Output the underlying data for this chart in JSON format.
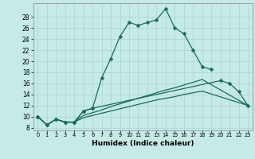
{
  "xlabel": "Humidex (Indice chaleur)",
  "xlim": [
    -0.5,
    23.5
  ],
  "ylim": [
    7.5,
    30.5
  ],
  "xticks": [
    0,
    1,
    2,
    3,
    4,
    5,
    6,
    7,
    8,
    9,
    10,
    11,
    12,
    13,
    14,
    15,
    16,
    17,
    18,
    19,
    20,
    21,
    22,
    23
  ],
  "yticks": [
    8,
    10,
    12,
    14,
    16,
    18,
    20,
    22,
    24,
    26,
    28
  ],
  "bg_color": "#c6eae6",
  "grid_color": "#aad4d0",
  "line_color": "#1a6b5a",
  "line1_x": [
    0,
    1,
    2,
    3,
    4,
    5,
    6,
    7,
    8,
    9,
    10,
    11,
    12,
    13,
    14,
    15,
    16,
    17,
    18,
    19
  ],
  "line1_y": [
    10,
    8.5,
    9.5,
    9,
    9,
    11,
    11.5,
    17,
    20.5,
    24.5,
    27,
    26.5,
    27,
    27.5,
    29.5,
    26,
    25,
    22,
    19,
    18.5
  ],
  "line2_x": [
    0,
    1,
    2,
    3,
    4,
    5,
    6,
    20,
    21,
    22,
    23
  ],
  "line2_y": [
    10,
    8.5,
    9.5,
    9,
    9,
    11,
    11.5,
    16.5,
    16,
    14.5,
    12
  ],
  "line3_x": [
    0,
    1,
    2,
    3,
    4,
    5,
    6,
    7,
    8,
    9,
    10,
    11,
    12,
    13,
    14,
    15,
    16,
    17,
    18,
    23
  ],
  "line3_y": [
    10,
    8.5,
    9.5,
    9,
    9,
    10.2,
    10.7,
    11.2,
    11.8,
    12.3,
    12.8,
    13.3,
    13.8,
    14.3,
    14.8,
    15.2,
    15.7,
    16.2,
    16.7,
    12
  ],
  "line4_x": [
    0,
    1,
    2,
    3,
    4,
    5,
    6,
    7,
    8,
    9,
    10,
    11,
    12,
    13,
    14,
    15,
    16,
    17,
    18,
    23
  ],
  "line4_y": [
    10,
    8.5,
    9.5,
    9,
    9,
    9.8,
    10.2,
    10.6,
    11.0,
    11.4,
    11.8,
    12.2,
    12.6,
    13.0,
    13.3,
    13.6,
    14.0,
    14.3,
    14.6,
    12
  ]
}
